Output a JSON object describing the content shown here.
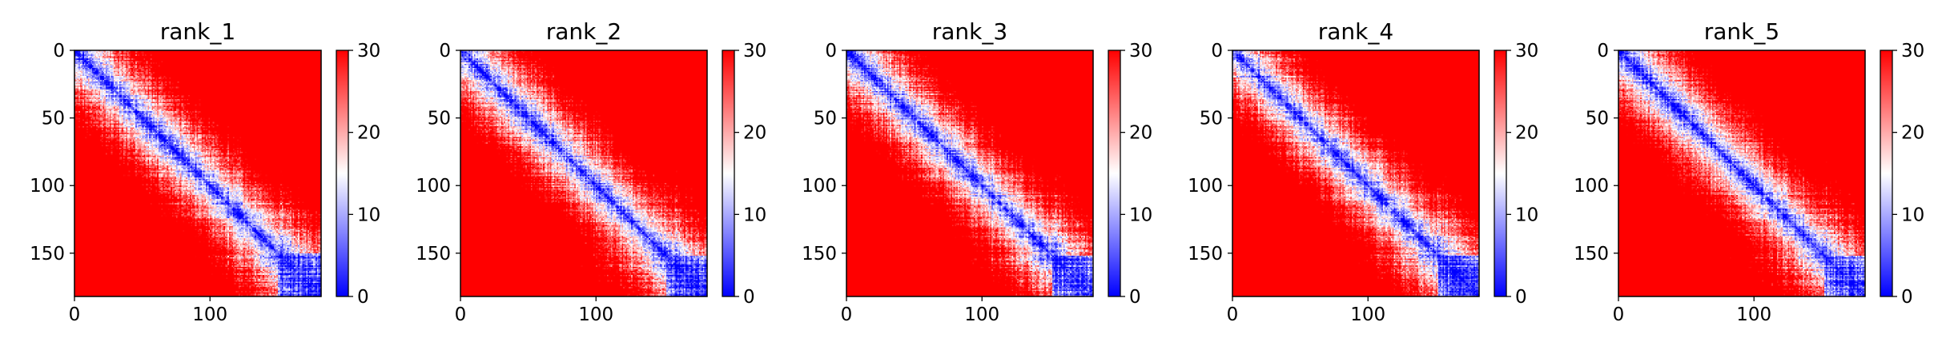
{
  "chart_data": [
    {
      "type": "heatmap",
      "title": "rank_1",
      "matrix_size": 182,
      "xlim": [
        0,
        182
      ],
      "ylim": [
        182,
        0
      ],
      "xticks": [
        0,
        100
      ],
      "yticks": [
        0,
        50,
        100,
        150
      ],
      "colorbar": {
        "min": 0,
        "max": 30,
        "ticks": [
          0,
          10,
          20,
          30
        ]
      },
      "colormap": [
        "#0000ff",
        "#ffffff",
        "#ff0000"
      ],
      "blocks": [
        {
          "start": 150,
          "end": 182
        }
      ],
      "seed": 11
    },
    {
      "type": "heatmap",
      "title": "rank_2",
      "matrix_size": 182,
      "xlim": [
        0,
        182
      ],
      "ylim": [
        182,
        0
      ],
      "xticks": [
        0,
        100
      ],
      "yticks": [
        0,
        50,
        100,
        150
      ],
      "colorbar": {
        "min": 0,
        "max": 30,
        "ticks": [
          0,
          10,
          20,
          30
        ]
      },
      "colormap": [
        "#0000ff",
        "#ffffff",
        "#ff0000"
      ],
      "blocks": [
        {
          "start": 152,
          "end": 182
        }
      ],
      "seed": 23
    },
    {
      "type": "heatmap",
      "title": "rank_3",
      "matrix_size": 182,
      "xlim": [
        0,
        182
      ],
      "ylim": [
        182,
        0
      ],
      "xticks": [
        0,
        100
      ],
      "yticks": [
        0,
        50,
        100,
        150
      ],
      "colorbar": {
        "min": 0,
        "max": 30,
        "ticks": [
          0,
          10,
          20,
          30
        ]
      },
      "colormap": [
        "#0000ff",
        "#ffffff",
        "#ff0000"
      ],
      "blocks": [
        {
          "start": 152,
          "end": 182
        }
      ],
      "seed": 37
    },
    {
      "type": "heatmap",
      "title": "rank_4",
      "matrix_size": 182,
      "xlim": [
        0,
        182
      ],
      "ylim": [
        182,
        0
      ],
      "xticks": [
        0,
        100
      ],
      "yticks": [
        0,
        50,
        100,
        150
      ],
      "colorbar": {
        "min": 0,
        "max": 30,
        "ticks": [
          0,
          10,
          20,
          30
        ]
      },
      "colormap": [
        "#0000ff",
        "#ffffff",
        "#ff0000"
      ],
      "blocks": [
        {
          "start": 152,
          "end": 182
        }
      ],
      "seed": 41
    },
    {
      "type": "heatmap",
      "title": "rank_5",
      "matrix_size": 182,
      "xlim": [
        0,
        182
      ],
      "ylim": [
        182,
        0
      ],
      "xticks": [
        0,
        100
      ],
      "yticks": [
        0,
        50,
        100,
        150
      ],
      "colorbar": {
        "min": 0,
        "max": 30,
        "ticks": [
          0,
          10,
          20,
          30
        ]
      },
      "colormap": [
        "#0000ff",
        "#ffffff",
        "#ff0000"
      ],
      "blocks": [
        {
          "start": 152,
          "end": 182
        }
      ],
      "seed": 53
    }
  ]
}
